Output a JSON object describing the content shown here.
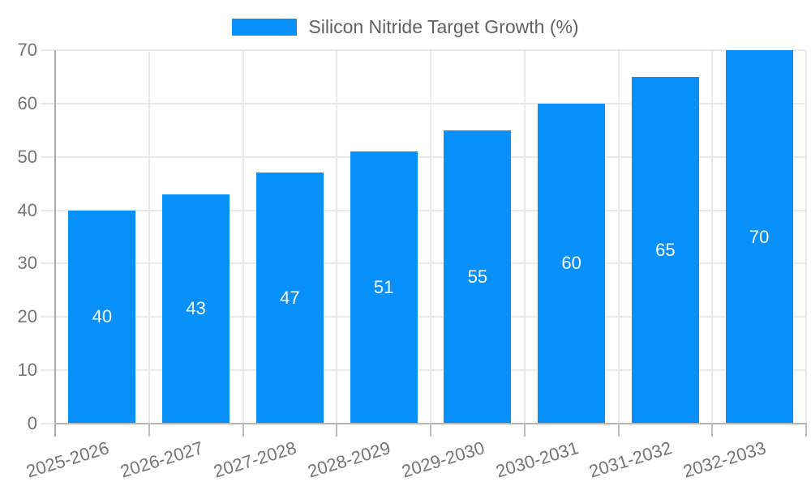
{
  "chart_data": {
    "type": "bar",
    "title": "Silicon Nitride Target Growth (%)",
    "categories": [
      "2025-2026",
      "2026-2027",
      "2027-2028",
      "2028-2029",
      "2029-2030",
      "2030-2031",
      "2031-2032",
      "2032-2033"
    ],
    "values": [
      40,
      43,
      47,
      51,
      55,
      60,
      65,
      70
    ],
    "xlabel": "",
    "ylabel": "",
    "ylim": [
      0,
      70
    ],
    "yticks": [
      0,
      10,
      20,
      30,
      40,
      50,
      60,
      70
    ],
    "grid": true,
    "legend_position": "top-center",
    "value_labels": "inside-center",
    "colors": {
      "bar": "#0890fa",
      "value_label": "#ffffff",
      "axis_text": "#757575",
      "legend_text": "#616161",
      "gridline": "#e9e9e9",
      "y_axis_line": "#a8a8a8",
      "x_axis_line": "#b5b5b5",
      "tick": "#bdbdbd",
      "background": "#ffffff"
    }
  }
}
